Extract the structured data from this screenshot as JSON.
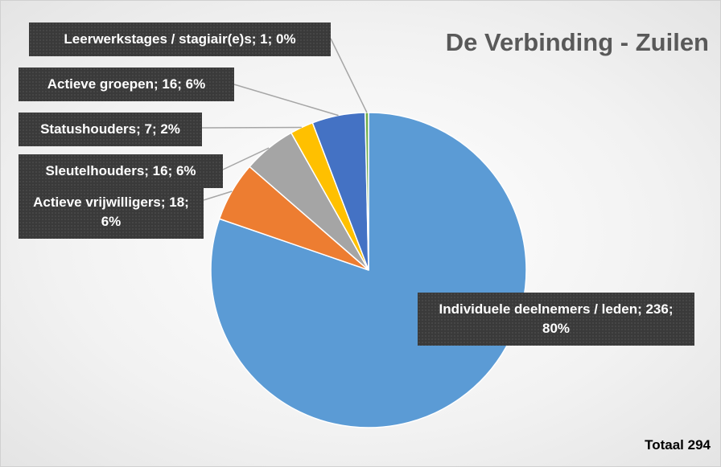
{
  "chart_data": {
    "type": "pie",
    "title": "De Verbinding - Zuilen",
    "values": [
      236,
      18,
      16,
      7,
      16,
      1
    ],
    "value_labels": [
      "Individuele deelnemers / leden; 236; 80%",
      "Actieve vrijwilligers; 18; 6%",
      "Sleutelhouders; 16; 6%",
      "Statushouders; 7; 2%",
      "Actieve groepen; 16; 6%",
      "Leerwerkstages / stagiair(e)s; 1; 0%"
    ],
    "colors": [
      "#5b9bd5",
      "#ed7d31",
      "#a5a5a5",
      "#ffc000",
      "#4472c4",
      "#70ad47"
    ],
    "annotation": "Totaal 294"
  }
}
